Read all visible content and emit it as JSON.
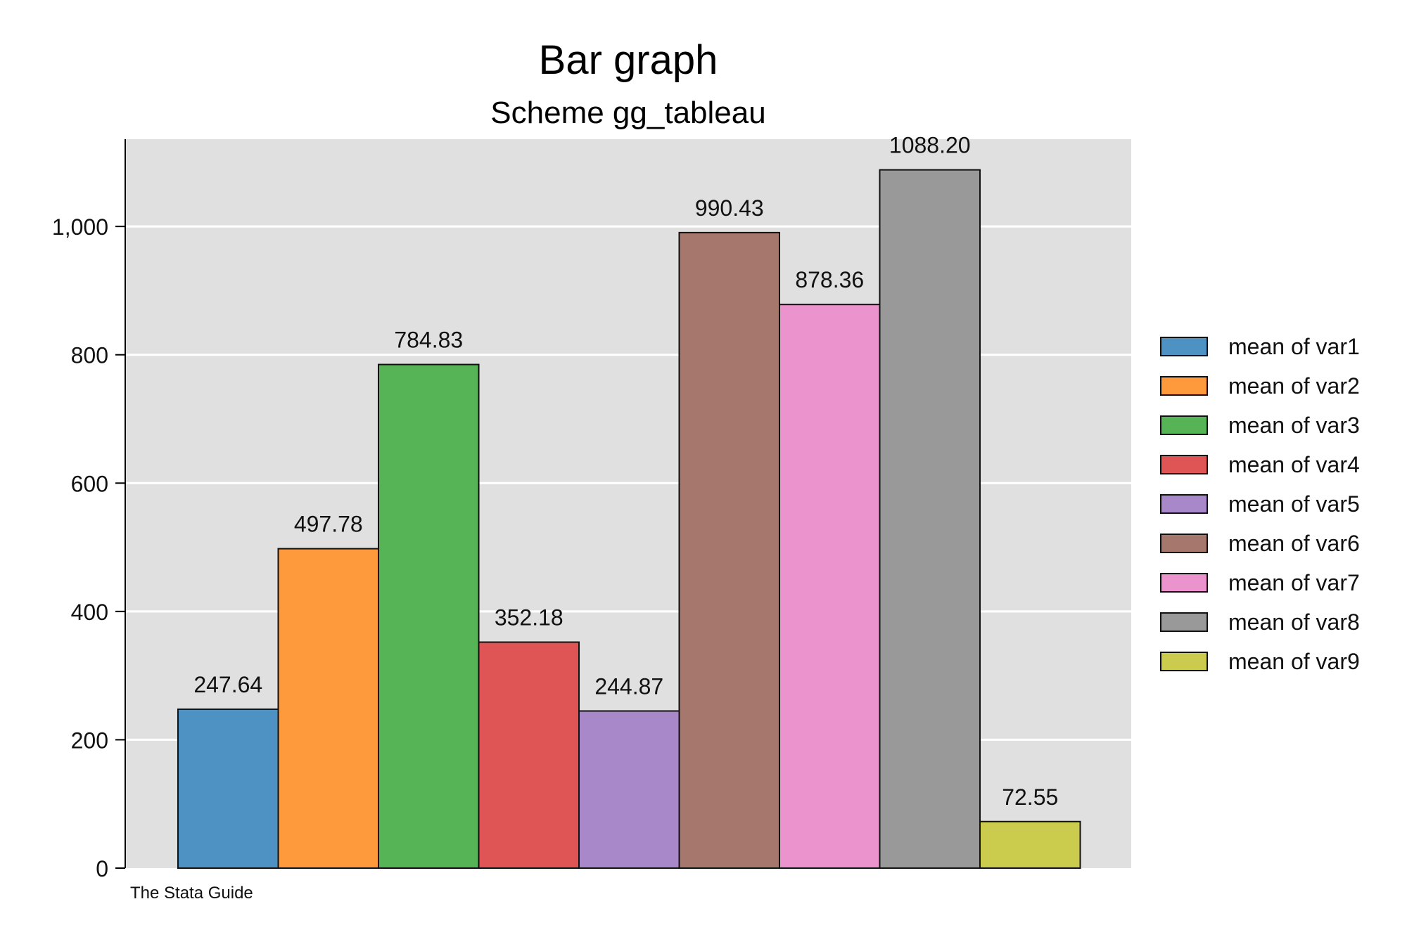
{
  "chart_data": {
    "type": "bar",
    "title": "Bar graph",
    "subtitle": "Scheme gg_tableau",
    "note": "The Stata Guide",
    "xlabel": "",
    "ylabel": "",
    "ylim": [
      0,
      1136
    ],
    "yticks": [
      0,
      200,
      400,
      600,
      800,
      1000
    ],
    "ytick_labels": [
      "0",
      "200",
      "400",
      "600",
      "800",
      "1,000"
    ],
    "grid": true,
    "legend_position": "right",
    "series": [
      {
        "name": "mean of var1",
        "value": 247.64,
        "label": "247.64",
        "color": "#4e92c3"
      },
      {
        "name": "mean of var2",
        "value": 497.78,
        "label": "497.78",
        "color": "#ff9a3c"
      },
      {
        "name": "mean of var3",
        "value": 784.83,
        "label": "784.83",
        "color": "#56b456"
      },
      {
        "name": "mean of var4",
        "value": 352.18,
        "label": "352.18",
        "color": "#df5455"
      },
      {
        "name": "mean of var5",
        "value": 244.87,
        "label": "244.87",
        "color": "#a988c9"
      },
      {
        "name": "mean of var6",
        "value": 990.43,
        "label": "990.43",
        "color": "#a5776d"
      },
      {
        "name": "mean of var7",
        "value": 878.36,
        "label": "878.36",
        "color": "#ea93cc"
      },
      {
        "name": "mean of var8",
        "value": 1088.2,
        "label": "1088.20",
        "color": "#999999"
      },
      {
        "name": "mean of var9",
        "value": 72.55,
        "label": "72.55",
        "color": "#cbcb4e"
      }
    ],
    "plot_background": "#e0e0e0",
    "gridline_color": "#ffffff"
  }
}
